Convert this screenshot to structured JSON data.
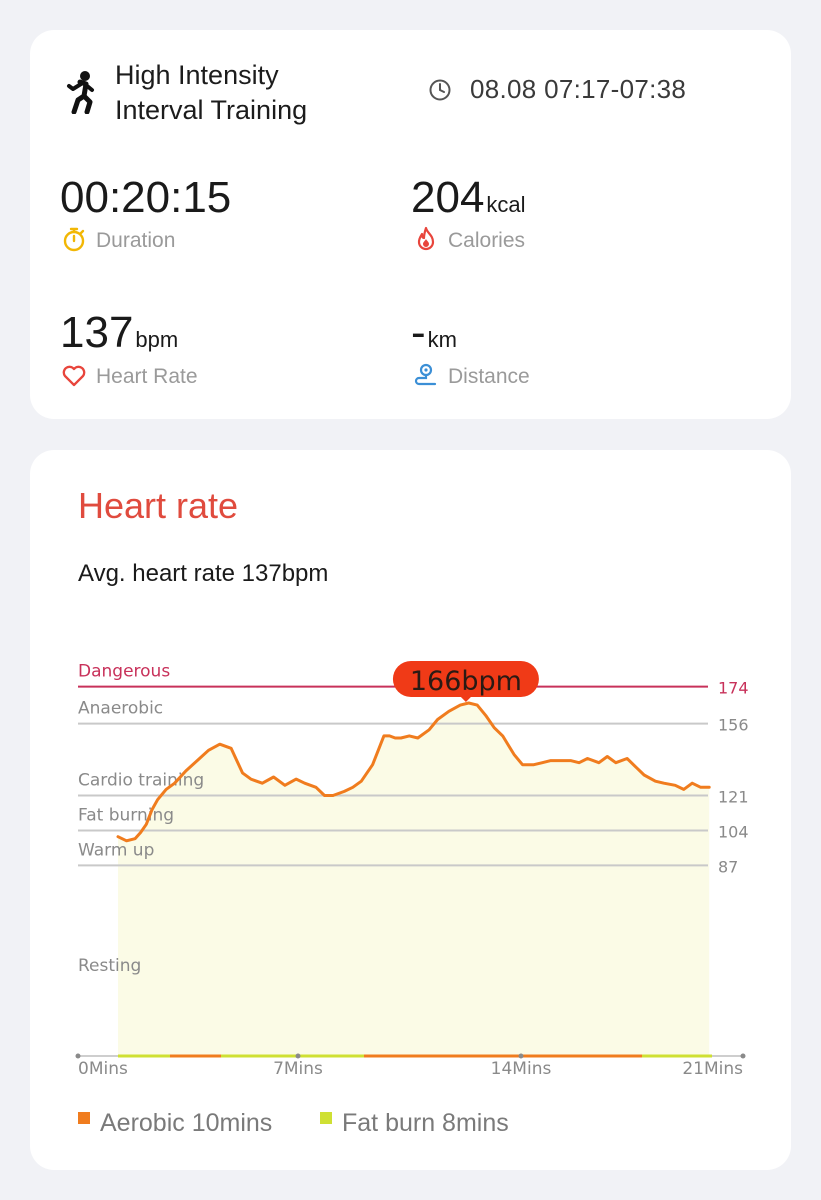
{
  "workout": {
    "name_line1": "High Intensity",
    "name_line2": "Interval Training",
    "time_range": "08.08 07:17-07:38",
    "icon": "running-person-icon"
  },
  "metrics": {
    "duration": {
      "value": "00:20:15",
      "unit": "",
      "label": "Duration",
      "icon": "stopwatch-icon",
      "icon_color": "#f2b705"
    },
    "calories": {
      "value": "204",
      "unit": "kcal",
      "label": "Calories",
      "icon": "flame-icon",
      "icon_color": "#e8453c"
    },
    "heart_rate": {
      "value": "137",
      "unit": "bpm",
      "label": "Heart Rate",
      "icon": "heart-icon",
      "icon_color": "#e8453c"
    },
    "distance": {
      "value": "-",
      "unit": "km",
      "label": "Distance",
      "icon": "route-icon",
      "icon_color": "#3b8fd6"
    }
  },
  "heart_rate_section": {
    "title": "Heart rate",
    "avg_text": "Avg. heart rate 137bpm",
    "peak_label": "166bpm",
    "legend": [
      {
        "label": "Aerobic 10mins",
        "color": "#f07c1e"
      },
      {
        "label": "Fat burn 8mins",
        "color": "#cfe033"
      }
    ]
  },
  "chart_data": {
    "type": "line",
    "title": "",
    "xlabel": "",
    "ylabel": "",
    "x_ticks": [
      "0Mins",
      "7Mins",
      "14Mins",
      "21Mins"
    ],
    "xlim": [
      0,
      21
    ],
    "zones": [
      {
        "name": "Dangerous",
        "threshold": 174,
        "color": "#c8315a"
      },
      {
        "name": "Anaerobic",
        "threshold": 156,
        "color": "#9a9a9a"
      },
      {
        "name": "Cardio training",
        "threshold": 121,
        "color": "#9a9a9a"
      },
      {
        "name": "Fat burning",
        "threshold": 104,
        "color": "#9a9a9a"
      },
      {
        "name": "Warm up",
        "threshold": 87,
        "color": "#9a9a9a"
      },
      {
        "name": "Resting",
        "threshold": null,
        "color": "#9a9a9a"
      }
    ],
    "peak": {
      "value": 166,
      "x": 12.3
    },
    "line_color": "#f07c1e",
    "fill_color": "#fbfbe6",
    "series": [
      {
        "x": [
          0,
          0.3,
          0.6,
          0.8,
          1.0,
          1.2,
          1.4,
          1.7,
          2.0,
          2.4,
          2.8,
          3.2,
          3.6,
          4.0,
          4.4,
          4.7,
          4.9,
          5.1,
          5.5,
          5.9,
          6.3,
          6.6,
          7.0,
          7.3,
          7.6,
          8.0,
          8.3,
          8.6,
          9.0,
          9.4,
          9.6,
          9.8,
          10.0,
          10.3,
          10.6,
          11.0,
          11.3,
          11.7,
          12.1,
          12.4,
          12.7,
          13.0,
          13.3,
          13.6,
          14.0,
          14.3,
          14.7,
          15.0,
          15.3,
          15.6,
          16.0,
          16.3,
          16.6,
          17.0,
          17.3,
          17.6,
          18.0,
          18.3,
          18.6,
          19.0,
          19.3,
          19.7,
          20.0,
          20.3,
          20.6,
          20.9
        ],
        "values": [
          101,
          99,
          100,
          103,
          107,
          114,
          119,
          124,
          127,
          133,
          138,
          143,
          146,
          144,
          132,
          129,
          128,
          127,
          130,
          126,
          129,
          127,
          125,
          121,
          121,
          123,
          125,
          128,
          136,
          150,
          150,
          149,
          149,
          150,
          149,
          153,
          158,
          162,
          165,
          166,
          165,
          160,
          154,
          150,
          141,
          136,
          136,
          137,
          138,
          138,
          138,
          137,
          139,
          137,
          140,
          137,
          139,
          135,
          131,
          128,
          127,
          126,
          124,
          127,
          125,
          125
        ]
      }
    ]
  }
}
